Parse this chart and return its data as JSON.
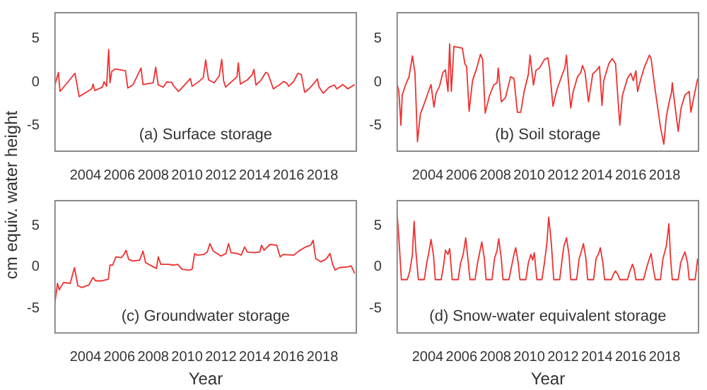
{
  "chart_data": [
    {
      "type": "line",
      "ylabel": "cm equiv. water height",
      "annotations": [
        "(a) Surface storage"
      ],
      "color": "#f03030",
      "xlim": [
        2002.2,
        2020
      ],
      "xticks": [
        2004,
        2006,
        2008,
        2010,
        2012,
        2014,
        2016,
        2018
      ],
      "ylim": [
        -8,
        8
      ],
      "yticks": [
        -5,
        0,
        5
      ],
      "x": [
        2002.2,
        2002.4,
        2002.5,
        2003.38,
        2003.63,
        2004.37,
        2004.45,
        2004.55,
        2005.0,
        2005.1,
        2005.25,
        2005.37,
        2005.45,
        2005.55,
        2005.75,
        2006.36,
        2006.5,
        2006.8,
        2007.28,
        2007.4,
        2008.0,
        2008.15,
        2008.3,
        2008.6,
        2008.8,
        2009.1,
        2009.2,
        2009.5,
        2009.85,
        2010.2,
        2010.3,
        2010.7,
        2010.96,
        2011.1,
        2011.27,
        2011.6,
        2011.9,
        2012.05,
        2012.16,
        2012.28,
        2012.7,
        2012.95,
        2013.03,
        2013.15,
        2013.57,
        2013.85,
        2013.95,
        2014.07,
        2014.35,
        2014.65,
        2014.77,
        2015.1,
        2015.45,
        2015.7,
        2015.9,
        2016.0,
        2016.3,
        2016.55,
        2016.75,
        2016.95,
        2017.2,
        2017.45,
        2017.7,
        2017.8,
        2018.05,
        2018.4,
        2018.7,
        2018.85,
        2019.2,
        2019.5,
        2019.9
      ],
      "values": [
        -0.3,
        1.1,
        -1.1,
        1.0,
        -1.7,
        -0.8,
        -0.25,
        -1.0,
        -0.6,
        0,
        -0.5,
        3.75,
        -0.1,
        1.2,
        1.5,
        1.3,
        -0.7,
        -0.35,
        1.6,
        -0.3,
        -0.1,
        1.7,
        -0.35,
        -0.6,
        0,
        -0.05,
        -0.45,
        -1.1,
        -0.35,
        0.4,
        -0.5,
        0.05,
        0.5,
        2.55,
        0.25,
        -0.1,
        0.7,
        2.6,
        0.15,
        -0.6,
        0.15,
        0.6,
        2.2,
        -0.25,
        0.25,
        0.85,
        1.45,
        -0.35,
        0.15,
        1.1,
        1.0,
        -0.8,
        -0.35,
        0.05,
        -0.15,
        -0.5,
        0.05,
        1.0,
        0.85,
        -1.2,
        -0.8,
        -0.25,
        0.35,
        -0.6,
        -1.3,
        -0.6,
        -0.35,
        -0.8,
        -0.3,
        -0.8,
        -0.3
      ]
    },
    {
      "type": "line",
      "annotations": [
        "(b) Soil storage"
      ],
      "color": "#f03030",
      "xlim": [
        2002.2,
        2020
      ],
      "xticks": [
        2004,
        2006,
        2008,
        2010,
        2012,
        2014,
        2016,
        2018
      ],
      "ylim": [
        -8,
        8
      ],
      "yticks": [
        -5,
        0,
        5
      ],
      "x": [
        2002.2,
        2002.3,
        2002.42,
        2002.5,
        2002.7,
        2002.9,
        2003.1,
        2003.25,
        2003.4,
        2003.57,
        2003.8,
        2004.05,
        2004.2,
        2004.37,
        2004.5,
        2004.7,
        2004.9,
        2005.05,
        2005.2,
        2005.3,
        2005.4,
        2005.55,
        2006.05,
        2006.2,
        2006.3,
        2006.45,
        2006.65,
        2006.9,
        2007.12,
        2007.25,
        2007.4,
        2007.65,
        2007.9,
        2008.1,
        2008.17,
        2008.35,
        2008.6,
        2008.9,
        2009.1,
        2009.3,
        2009.5,
        2009.7,
        2009.95,
        2010.05,
        2010.25,
        2010.4,
        2010.6,
        2010.9,
        2011.1,
        2011.2,
        2011.4,
        2011.65,
        2012.0,
        2012.1,
        2012.2,
        2012.3,
        2012.45,
        2012.6,
        2012.85,
        2013.05,
        2013.15,
        2013.3,
        2013.5,
        2013.75,
        2014.0,
        2014.15,
        2014.3,
        2014.4,
        2014.7,
        2014.9,
        2015.1,
        2015.35,
        2015.5,
        2015.8,
        2016.0,
        2016.15,
        2016.3,
        2016.4,
        2016.6,
        2016.8,
        2017.1,
        2017.2,
        2017.4,
        2017.75,
        2017.95,
        2018.1,
        2018.3,
        2018.4,
        2018.45,
        2018.55,
        2018.8,
        2018.97,
        2019.2,
        2019.45,
        2019.55,
        2019.7,
        2019.95
      ],
      "values": [
        -0.3,
        -1.1,
        -5.0,
        -1.5,
        -0.3,
        0.6,
        3.0,
        1.1,
        -6.9,
        -3.7,
        -2.5,
        -1.1,
        -0.3,
        -2.9,
        -1.3,
        -0.5,
        1.1,
        1.4,
        -1.1,
        4.4,
        -1.1,
        4.1,
        3.9,
        2.1,
        1.8,
        -3.4,
        0.15,
        1.6,
        3.2,
        2.6,
        -3.6,
        -1.6,
        -0.35,
        -0.1,
        1.6,
        -2.3,
        -1.8,
        0.6,
        0.4,
        -3.5,
        -3.5,
        -1.1,
        0.9,
        3.1,
        -0.35,
        1.35,
        1.6,
        2.6,
        2.8,
        1.6,
        -2.8,
        -0.8,
        1.1,
        1.6,
        3.1,
        0.4,
        -3.0,
        -1.1,
        0.6,
        1.1,
        1.9,
        1.1,
        -2.3,
        0.9,
        1.4,
        1.8,
        -2.7,
        0.15,
        2.1,
        2.7,
        2.1,
        -5.0,
        -1.6,
        0.4,
        1.0,
        0.15,
        1.3,
        -1.1,
        0.4,
        1.7,
        3.1,
        2.7,
        -0.35,
        -5.2,
        -7.2,
        -4.0,
        -2.0,
        -1.3,
        -0.1,
        -1.8,
        -5.7,
        -3.0,
        -1.5,
        -1.1,
        -3.5,
        -2.0,
        0.4
      ]
    },
    {
      "type": "line",
      "xlabel": "Year",
      "annotations": [
        "(c) Groundwater storage"
      ],
      "color": "#f03030",
      "xlim": [
        2002.2,
        2020
      ],
      "xticks": [
        2004,
        2006,
        2008,
        2010,
        2012,
        2014,
        2016,
        2018
      ],
      "ylim": [
        -8,
        8
      ],
      "yticks": [
        -5,
        0,
        5
      ],
      "x": [
        2002.2,
        2002.35,
        2002.45,
        2002.7,
        2003.1,
        2003.35,
        2003.55,
        2003.8,
        2004.2,
        2004.45,
        2004.6,
        2005.0,
        2005.35,
        2005.45,
        2005.6,
        2005.8,
        2006.1,
        2006.25,
        2006.4,
        2006.55,
        2006.8,
        2007.2,
        2007.4,
        2007.55,
        2008.0,
        2008.2,
        2008.3,
        2008.45,
        2008.9,
        2009.2,
        2009.45,
        2009.7,
        2010.1,
        2010.3,
        2010.45,
        2010.6,
        2011.0,
        2011.2,
        2011.35,
        2011.55,
        2012.0,
        2012.3,
        2012.45,
        2012.6,
        2013.0,
        2013.2,
        2013.4,
        2013.55,
        2014.0,
        2014.3,
        2014.4,
        2014.55,
        2014.9,
        2015.3,
        2015.5,
        2015.7,
        2016.3,
        2016.6,
        2017.0,
        2017.3,
        2017.45,
        2017.6,
        2017.9,
        2018.2,
        2018.45,
        2018.6,
        2018.75,
        2019.0,
        2019.5,
        2019.7,
        2019.9
      ],
      "values": [
        -4.3,
        -2.0,
        -2.8,
        -1.9,
        -2.0,
        -0.1,
        -2.3,
        -2.5,
        -2.2,
        -1.3,
        -1.7,
        -1.7,
        -1.5,
        0.2,
        0.2,
        1.2,
        1.1,
        1.4,
        2.0,
        0.9,
        0.7,
        0.8,
        1.9,
        0.5,
        0.0,
        -0.2,
        1.2,
        0.3,
        0.3,
        0.2,
        0.3,
        -0.3,
        -0.4,
        -0.3,
        1.6,
        1.4,
        1.5,
        1.8,
        2.8,
        1.9,
        1.3,
        1.6,
        2.8,
        1.7,
        1.6,
        1.4,
        2.4,
        1.8,
        1.7,
        1.8,
        2.6,
        2.0,
        2.7,
        2.6,
        1.2,
        1.5,
        1.4,
        1.9,
        2.4,
        2.6,
        3.2,
        1.0,
        0.6,
        0.9,
        1.6,
        0.3,
        -0.4,
        -0.1,
        0.0,
        0.1,
        -0.8
      ]
    },
    {
      "type": "line",
      "xlabel": "Year",
      "annotations": [
        "(d) Snow-water equivalent storage"
      ],
      "color": "#f03030",
      "xlim": [
        2002.2,
        2020
      ],
      "xticks": [
        2004,
        2006,
        2008,
        2010,
        2012,
        2014,
        2016,
        2018
      ],
      "ylim": [
        -8,
        8
      ],
      "yticks": [
        -5,
        0,
        5
      ],
      "x": [
        2002.2,
        2002.3,
        2002.45,
        2002.8,
        2002.95,
        2003.1,
        2003.2,
        2003.3,
        2003.45,
        2003.8,
        2003.95,
        2004.05,
        2004.2,
        2004.35,
        2004.45,
        2004.8,
        2004.95,
        2005.05,
        2005.2,
        2005.3,
        2005.45,
        2005.8,
        2005.95,
        2006.1,
        2006.25,
        2006.4,
        2006.5,
        2006.8,
        2006.95,
        2007.1,
        2007.2,
        2007.35,
        2007.45,
        2007.8,
        2007.95,
        2008.1,
        2008.2,
        2008.35,
        2008.45,
        2008.8,
        2008.95,
        2009.1,
        2009.2,
        2009.35,
        2009.45,
        2009.8,
        2009.95,
        2010.1,
        2010.2,
        2010.3,
        2010.45,
        2010.75,
        2010.9,
        2011.05,
        2011.15,
        2011.3,
        2011.45,
        2011.8,
        2011.95,
        2012.05,
        2012.2,
        2012.35,
        2012.45,
        2012.8,
        2012.95,
        2013.1,
        2013.2,
        2013.35,
        2013.45,
        2013.8,
        2013.95,
        2014.1,
        2014.2,
        2014.35,
        2014.45,
        2014.85,
        2015.0,
        2015.1,
        2015.25,
        2015.35,
        2015.8,
        2015.95,
        2016.1,
        2016.2,
        2016.3,
        2016.75,
        2016.95,
        2017.1,
        2017.2,
        2017.35,
        2017.45,
        2017.75,
        2017.9,
        2018.1,
        2018.25,
        2018.35,
        2018.45,
        2018.8,
        2018.95,
        2019.1,
        2019.2,
        2019.35,
        2019.45,
        2019.8,
        2019.95
      ],
      "values": [
        6.3,
        3.5,
        -1.55,
        -1.55,
        -0.5,
        1.5,
        5.5,
        2.0,
        -1.55,
        -1.55,
        0.5,
        1.5,
        3.3,
        1.3,
        -1.55,
        -1.55,
        0.3,
        2.0,
        1.5,
        2.2,
        -1.55,
        -1.55,
        0.5,
        1.5,
        3.5,
        0.5,
        -1.55,
        -1.55,
        0.5,
        2.0,
        3.0,
        1.0,
        -1.55,
        -1.55,
        1.0,
        2.0,
        3.4,
        1.0,
        -1.55,
        -1.55,
        0.0,
        1.5,
        2.3,
        0.5,
        -1.55,
        -1.55,
        0.5,
        1.5,
        0.8,
        1.7,
        -1.55,
        -1.55,
        0.5,
        3.0,
        6.0,
        3.0,
        -1.55,
        -1.55,
        1.0,
        2.5,
        3.5,
        1.5,
        -1.55,
        -1.55,
        1.0,
        2.0,
        2.8,
        1.0,
        -1.55,
        -1.55,
        1.0,
        1.6,
        2.3,
        0.5,
        -1.55,
        -1.55,
        -0.8,
        -0.5,
        -1.0,
        -1.55,
        -1.55,
        -0.5,
        0.3,
        -0.3,
        -1.55,
        -1.55,
        0.0,
        1.0,
        1.6,
        -0.5,
        -1.55,
        -1.55,
        1.0,
        2.5,
        5.2,
        1.0,
        -1.55,
        -1.55,
        0.5,
        1.3,
        1.8,
        0.5,
        -1.55,
        -1.55,
        1.0
      ]
    }
  ]
}
